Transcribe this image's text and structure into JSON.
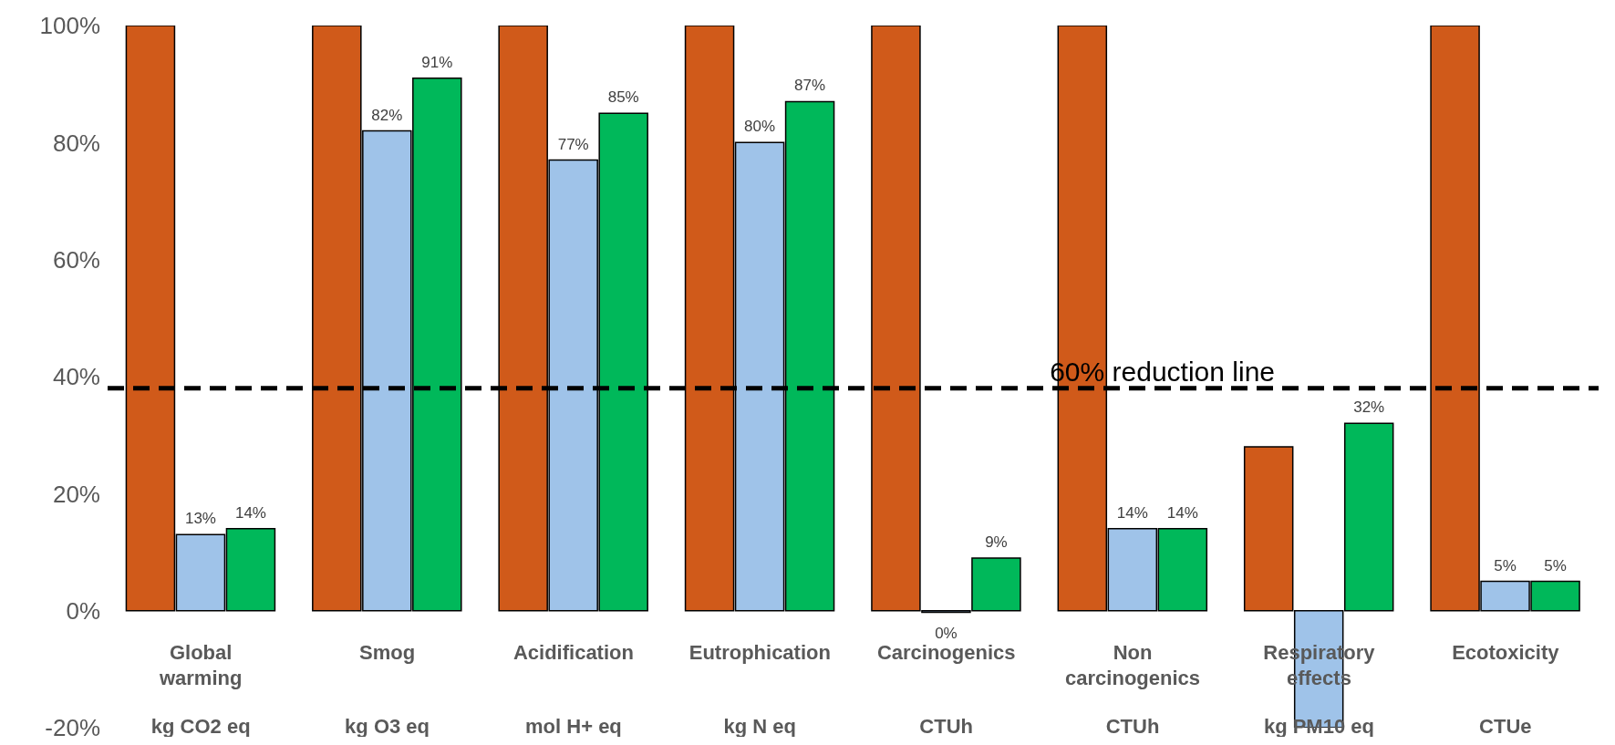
{
  "chart_data": {
    "type": "bar",
    "categories": [
      "Global warming\nkg CO2 eq",
      "Smog\nkg O3 eq",
      "Acidification\nmol H+ eq",
      "Eutrophication\nkg N eq",
      "Carcinogenics\nCTUh",
      "Non carcinogenics\nCTUh",
      "Respiratory effects\nkg PM10 eq",
      "Ecotoxicity\nCTUe"
    ],
    "series": [
      {
        "color": "#d05a1a",
        "values": [
          100,
          100,
          100,
          100,
          100,
          100,
          28,
          100
        ]
      },
      {
        "color": "#9fc3e9",
        "values": [
          13,
          82,
          77,
          80,
          -0.3,
          14,
          -20,
          5
        ],
        "value_labels": [
          "13%",
          "82%",
          "77%",
          "80%",
          "0%",
          "14%",
          null,
          "5%"
        ]
      },
      {
        "color": "#00b85a",
        "values": [
          14,
          91,
          85,
          87,
          9,
          14,
          32,
          5
        ],
        "value_labels": [
          "14%",
          "91%",
          "85%",
          "87%",
          "9%",
          "14%",
          "32%",
          "5%"
        ]
      }
    ],
    "ylim": [
      -20,
      100
    ],
    "yticks": [
      {
        "value": -20,
        "label": "-20%"
      },
      {
        "value": 0,
        "label": "0%"
      },
      {
        "value": 20,
        "label": "20%"
      },
      {
        "value": 40,
        "label": "40%"
      },
      {
        "value": 60,
        "label": "60%"
      },
      {
        "value": 80,
        "label": "80%"
      },
      {
        "value": 100,
        "label": "100%"
      }
    ],
    "ref_lines": [
      {
        "axis": "y",
        "value": 38,
        "label": "60% reduction line",
        "color": "#000000",
        "line_style": "dashed"
      }
    ],
    "grid": false,
    "legend": false
  }
}
